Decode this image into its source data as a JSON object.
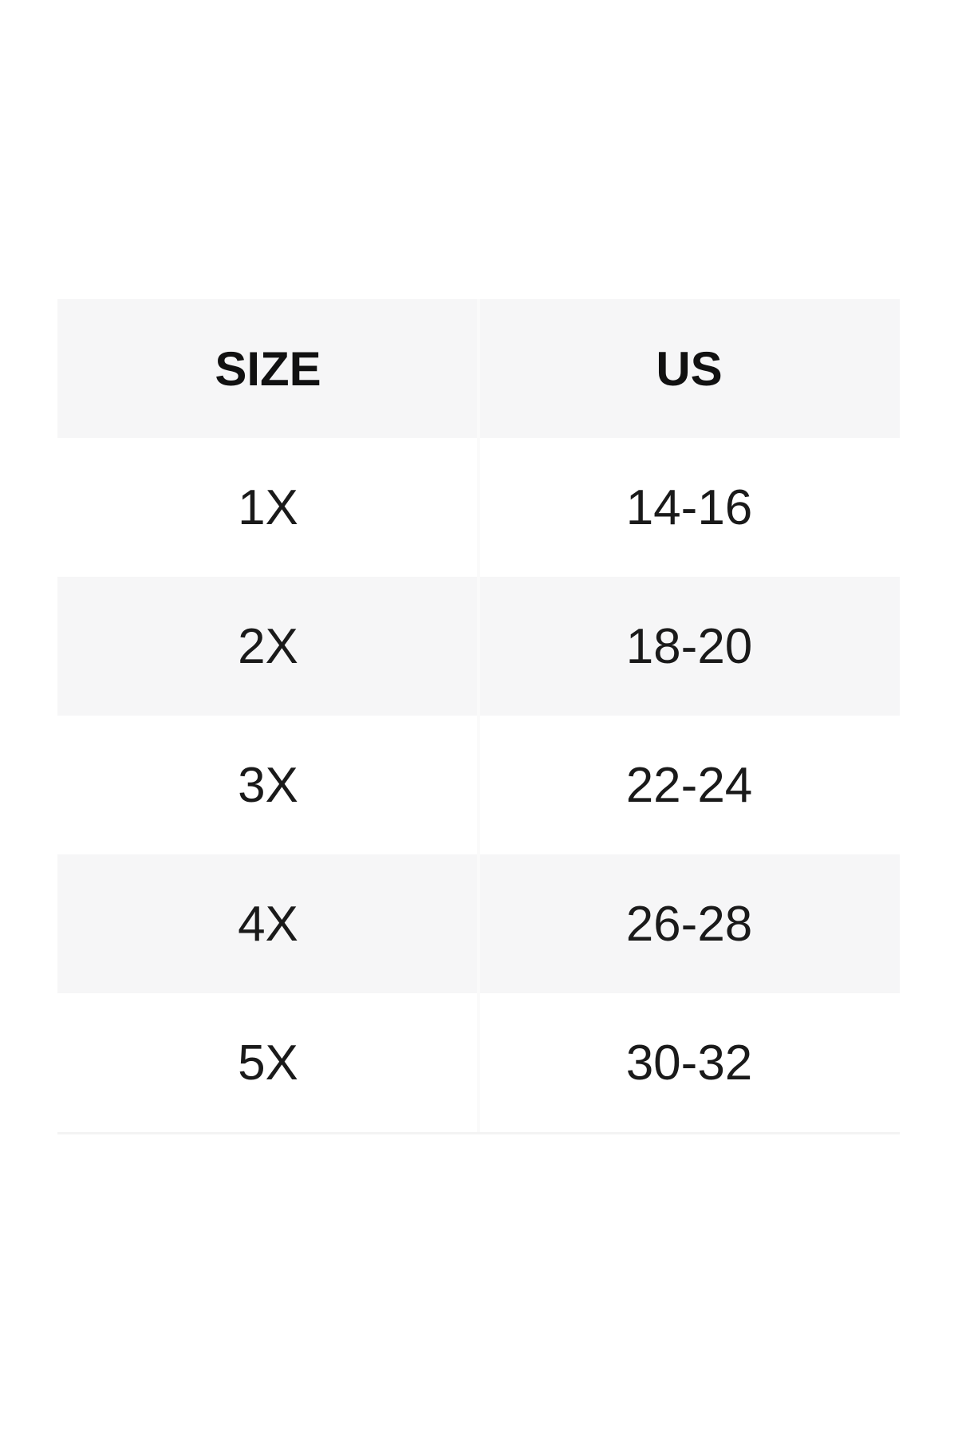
{
  "table": {
    "columns": [
      {
        "label": "SIZE"
      },
      {
        "label": "US"
      }
    ],
    "rows": [
      {
        "size": "1X",
        "us": "14-16"
      },
      {
        "size": "2X",
        "us": "18-20"
      },
      {
        "size": "3X",
        "us": "22-24"
      },
      {
        "size": "4X",
        "us": "26-28"
      },
      {
        "size": "5X",
        "us": "30-32"
      }
    ]
  },
  "colors": {
    "page_bg": "#ffffff",
    "header_bg": "#f6f6f7",
    "alt_row_bg": "#f6f6f7",
    "header_text": "#111111",
    "cell_text": "#1a1a1a",
    "divider": "#fafafa",
    "bottom_border": "#f3f3f3"
  }
}
